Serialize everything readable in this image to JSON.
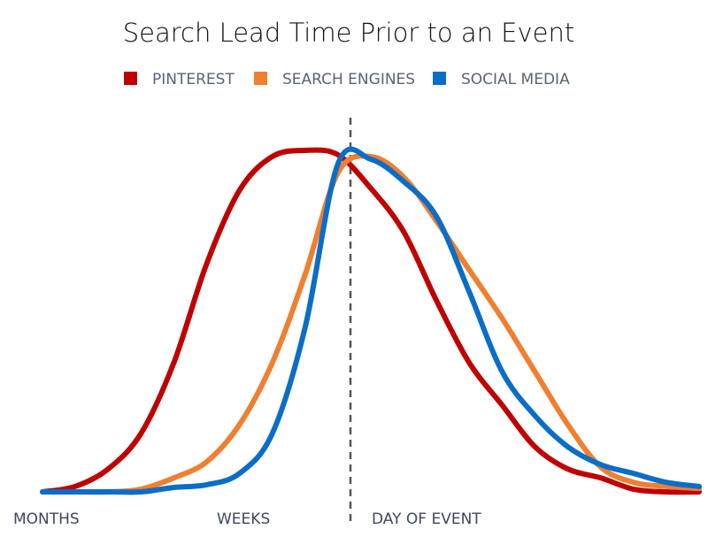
{
  "chart_data": {
    "type": "line",
    "title": "Search Lead Time Prior to an Event",
    "xlabel": "",
    "ylabel": "",
    "xlim": [
      0,
      100
    ],
    "ylim": [
      0,
      100
    ],
    "grid": false,
    "legend_placement": "top",
    "x_category_labels": [
      "MONTHS",
      "WEEKS",
      "DAY OF EVENT"
    ],
    "event_marker": {
      "x": 46.9,
      "style": "dashed",
      "color": "#555555"
    },
    "x": [
      0,
      5,
      10,
      15,
      20,
      25,
      30,
      35,
      40,
      45,
      50,
      55,
      60,
      65,
      70,
      75,
      80,
      85,
      90,
      95,
      100
    ],
    "series": [
      {
        "name": "PINTEREST",
        "color": "#c00000",
        "values": [
          0,
          1.6,
          6.7,
          17.1,
          37.8,
          66.8,
          88.3,
          98.2,
          100,
          98.7,
          88.9,
          76.2,
          56,
          37.8,
          25.4,
          13.2,
          6.7,
          4.1,
          0.8,
          0,
          0
        ]
      },
      {
        "name": "SEARCH ENGINES",
        "color": "#f07f30",
        "values": [
          0,
          0,
          0,
          0.8,
          4.1,
          8.8,
          19.7,
          37.8,
          63.7,
          93.5,
          98.2,
          92.2,
          79.3,
          65,
          50.8,
          35.2,
          19.7,
          7.3,
          2.8,
          1.6,
          1.0
        ]
      },
      {
        "name": "SOCIAL MEDIA",
        "color": "#0a6ec8",
        "values": [
          0,
          0,
          0,
          0,
          1.3,
          2.1,
          5.4,
          17.1,
          48.2,
          96.1,
          97.4,
          90.9,
          80.6,
          58.5,
          35.2,
          22.3,
          13.2,
          8,
          5.4,
          2.8,
          1.6
        ]
      }
    ]
  }
}
